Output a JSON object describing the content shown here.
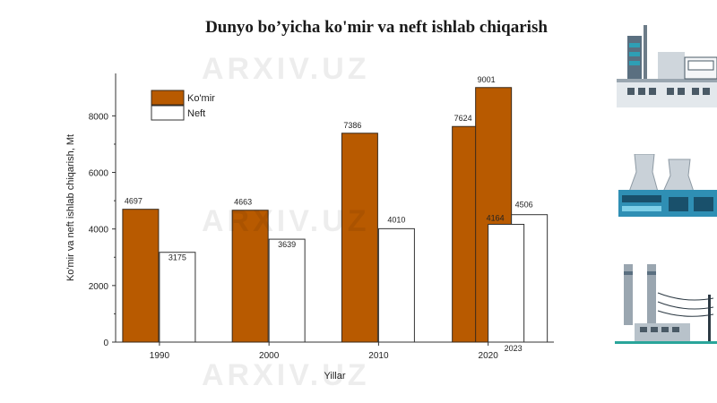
{
  "chart_data": {
    "type": "bar",
    "title": "Dunyo bo’yicha ko'mir va neft ishlab chiqarish",
    "xlabel": "Yillar",
    "ylabel": "Ko'mir va neft ishlab chiqarish, Mt",
    "ylim": [
      0,
      9500
    ],
    "yticks": [
      0,
      2000,
      4000,
      6000,
      8000
    ],
    "xticks": [
      1990,
      2000,
      2010,
      2020
    ],
    "grid": false,
    "legend_position": "top-left",
    "series": [
      {
        "name": "Ko'mir",
        "color": "#b85a00",
        "points": [
          {
            "x": 1990,
            "value": 4697
          },
          {
            "x": 2000,
            "value": 4663
          },
          {
            "x": 2010,
            "value": 7386
          },
          {
            "x": 2019,
            "value": 7624
          },
          {
            "x": 2023,
            "value": 9001
          }
        ]
      },
      {
        "name": "Neft",
        "color": "#ffffff",
        "points": [
          {
            "x": 1990,
            "value": 3175
          },
          {
            "x": 2000,
            "value": 3639
          },
          {
            "x": 2010,
            "value": 4010
          },
          {
            "x": 2023,
            "value": 4164
          },
          {
            "x": 2023,
            "value": 4506
          }
        ]
      }
    ],
    "annotations": [
      "2023"
    ]
  },
  "watermark": "ARXIV.UZ"
}
